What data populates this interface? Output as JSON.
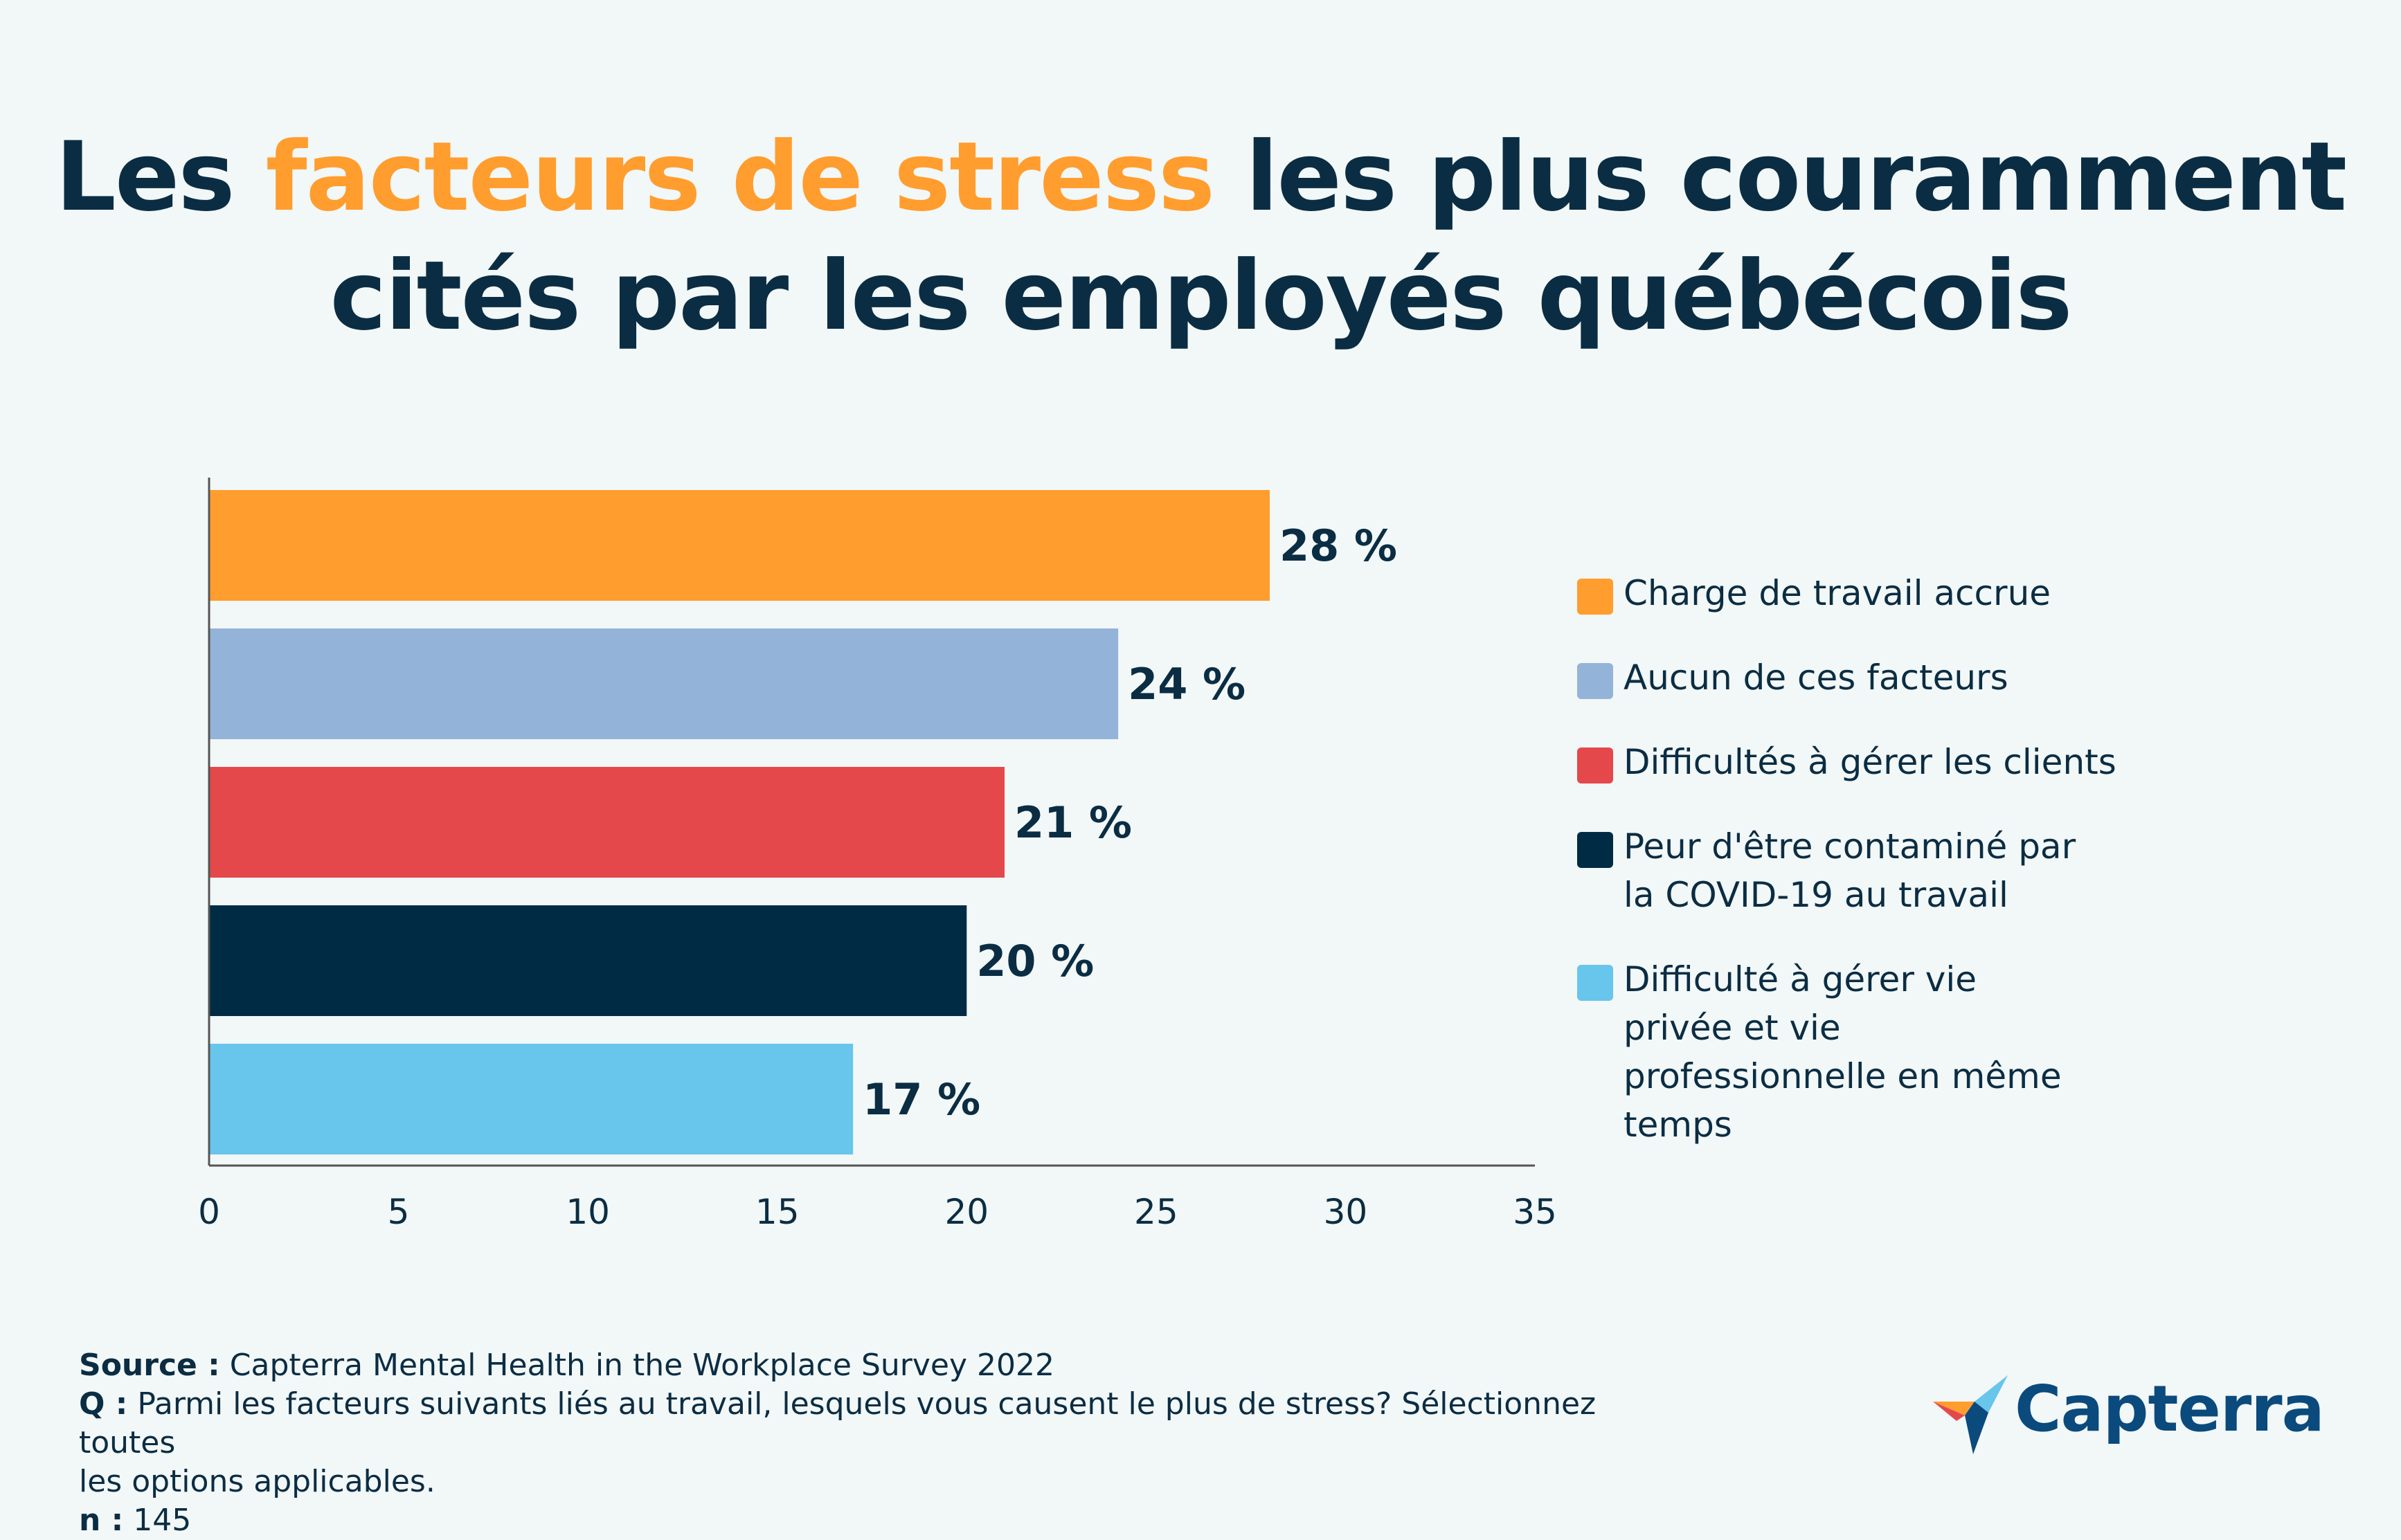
{
  "title": {
    "part1": "Les ",
    "highlight": "facteurs de stress",
    "part2": " les plus couramment",
    "line2": "cités par les employés québécois"
  },
  "colors": {
    "background": "#f2f7f7",
    "text": "#0b2d43",
    "highlight": "#ff9d2e"
  },
  "chart_data": {
    "type": "bar",
    "orientation": "horizontal",
    "categories": [
      "Charge de travail accrue",
      "Aucun de ces facteurs",
      "Difficultés à gérer les clients",
      "Peur d'être contaminé par la COVID-19 au travail",
      "Difficulté à gérer vie privée et vie professionnelle en même temps"
    ],
    "values": [
      28,
      24,
      21,
      20,
      17
    ],
    "data_labels": [
      "28 %",
      "24 %",
      "21 %",
      "20 %",
      "17 %"
    ],
    "colors": [
      "#ff9d2e",
      "#94b3d8",
      "#e5484b",
      "#002b44",
      "#68c5ec"
    ],
    "xlim": [
      0,
      35
    ],
    "xticks": [
      0,
      5,
      10,
      15,
      20,
      25,
      30,
      35
    ],
    "xlabel": "",
    "ylabel": "",
    "legend_position": "right",
    "grid": false
  },
  "legend": {
    "items": [
      {
        "lines": [
          "Charge de travail accrue"
        ],
        "color": "#ff9d2e"
      },
      {
        "lines": [
          "Aucun de ces facteurs"
        ],
        "color": "#94b3d8"
      },
      {
        "lines": [
          "Difficultés à gérer les clients"
        ],
        "color": "#e5484b"
      },
      {
        "lines": [
          "Peur d'être contaminé par",
          "la COVID-19 au travail"
        ],
        "color": "#002b44"
      },
      {
        "lines": [
          "Difficulté à gérer vie",
          "privée et vie",
          "professionnelle en même",
          "temps"
        ],
        "color": "#68c5ec"
      }
    ]
  },
  "footer": {
    "source_label": "Source :",
    "source_text": " Capterra Mental Health in the Workplace Survey 2022",
    "question_label": "Q :",
    "question_line1": " Parmi les facteurs suivants liés au travail, lesquels vous causent le plus de stress? Sélectionnez toutes",
    "question_line2": "les options applicables.",
    "n_label": "n :",
    "n_value": " 145"
  },
  "logo": {
    "text": "Capterra",
    "icon": "capterra-arrow-icon"
  }
}
